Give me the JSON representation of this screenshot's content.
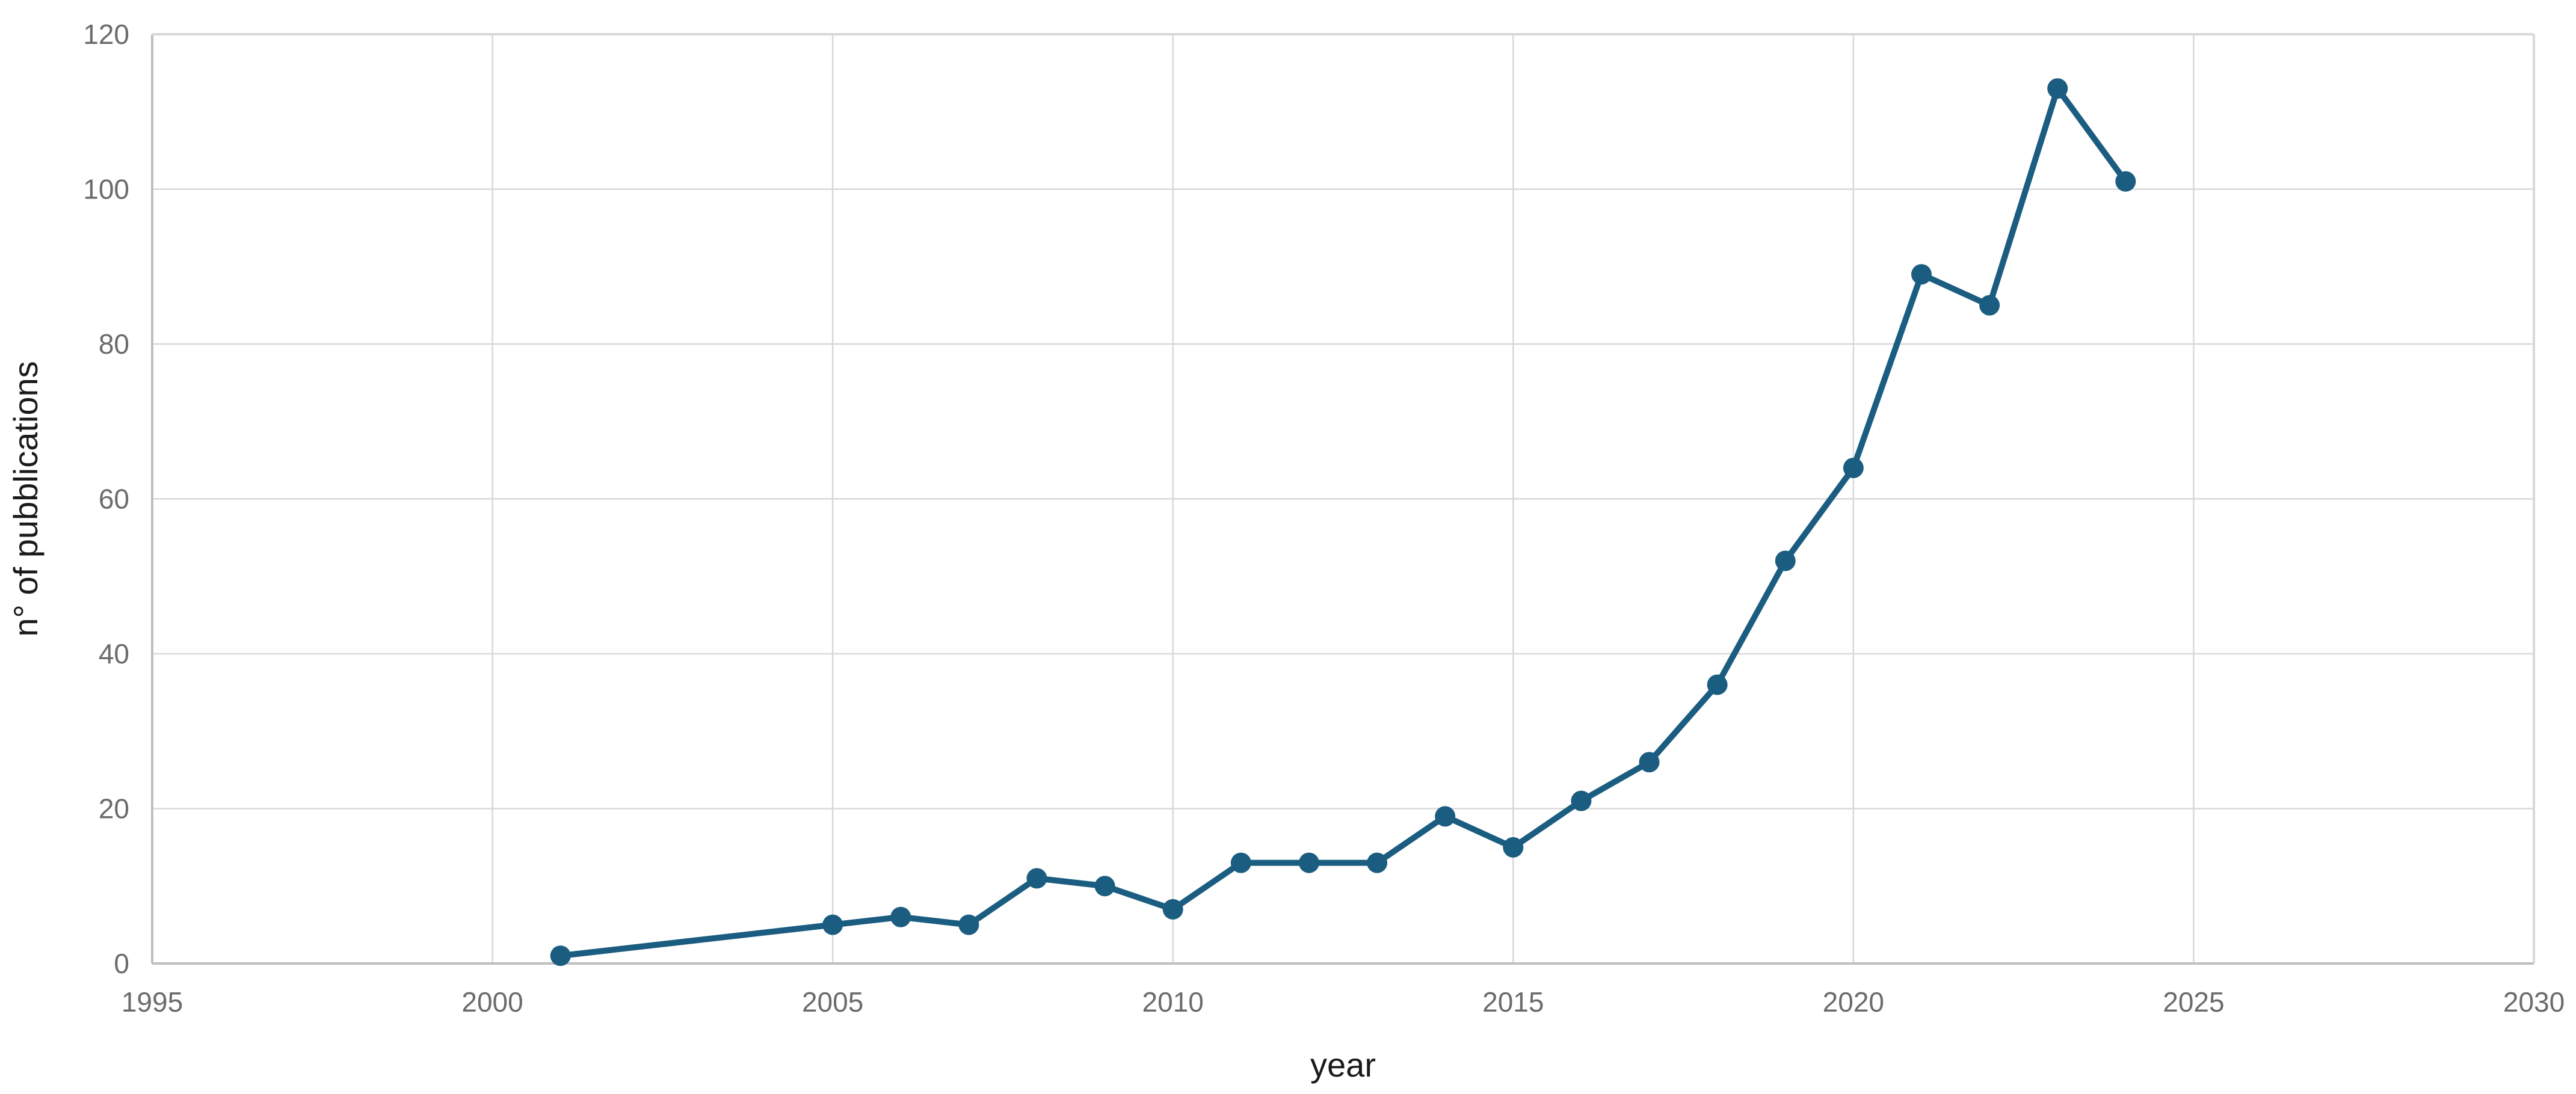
{
  "chart_data": {
    "type": "line",
    "title": "",
    "xlabel": "year",
    "ylabel": "n° of pubblications",
    "x": [
      2001,
      2005,
      2006,
      2007,
      2008,
      2009,
      2010,
      2011,
      2012,
      2013,
      2014,
      2015,
      2016,
      2017,
      2018,
      2019,
      2020,
      2021,
      2022,
      2023,
      2024
    ],
    "values": [
      1,
      5,
      6,
      5,
      11,
      10,
      7,
      13,
      13,
      13,
      19,
      15,
      21,
      26,
      36,
      52,
      64,
      89,
      85,
      113,
      101
    ],
    "series_name": "n° of pubblications",
    "xlim": [
      1995,
      2030
    ],
    "ylim": [
      0,
      120
    ],
    "xticks": [
      1995,
      2000,
      2005,
      2010,
      2015,
      2020,
      2025,
      2030
    ],
    "yticks": [
      0,
      20,
      40,
      60,
      80,
      100,
      120
    ],
    "grid": true,
    "legend_position": "none",
    "colors": {
      "line": "#1b5d80",
      "marker": "#1b5d80",
      "gridline": "#d8d8d8",
      "spine": "#bfbfbf",
      "tick_label": "#6b6b6b",
      "axis_label": "#1a1a1a",
      "background": "#ffffff"
    }
  }
}
